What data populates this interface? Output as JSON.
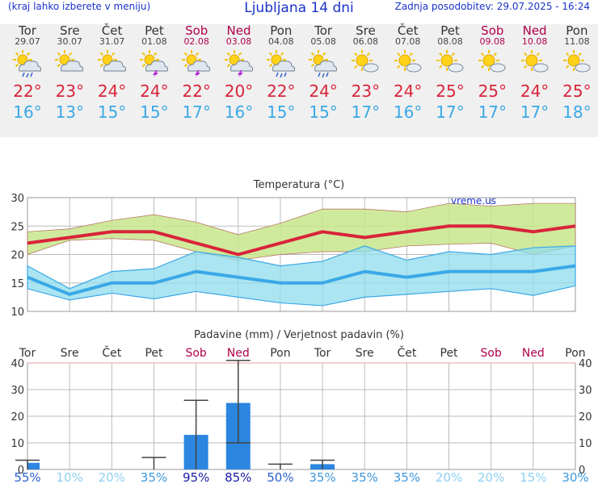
{
  "header": {
    "left_note": "(kraj lahko izberete v meniju)",
    "title": "Ljubljana 14 dni",
    "updated": "Zadnja posodobitev: 29.07.2025 - 16:24"
  },
  "days": [
    {
      "name": "Tor",
      "date": "29.07",
      "icon": "sun-cloud-rain-icon",
      "tmax": "22°",
      "tmin": "16°",
      "weekend": false
    },
    {
      "name": "Sre",
      "date": "30.07",
      "icon": "sun-cloud-icon",
      "tmax": "23°",
      "tmin": "13°",
      "weekend": false
    },
    {
      "name": "Čet",
      "date": "31.07",
      "icon": "sun-cloud-icon",
      "tmax": "24°",
      "tmin": "15°",
      "weekend": false
    },
    {
      "name": "Pet",
      "date": "01.08",
      "icon": "sun-cloud-storm-icon",
      "tmax": "24°",
      "tmin": "15°",
      "weekend": false
    },
    {
      "name": "Sob",
      "date": "02.08",
      "icon": "sun-cloud-storm-icon",
      "tmax": "22°",
      "tmin": "17°",
      "weekend": true
    },
    {
      "name": "Ned",
      "date": "03.08",
      "icon": "sun-cloud-storm-icon",
      "tmax": "20°",
      "tmin": "16°",
      "weekend": true
    },
    {
      "name": "Pon",
      "date": "04.08",
      "icon": "sun-cloud-rain-icon",
      "tmax": "22°",
      "tmin": "15°",
      "weekend": false
    },
    {
      "name": "Tor",
      "date": "05.08",
      "icon": "sun-cloud-rain-icon",
      "tmax": "24°",
      "tmin": "15°",
      "weekend": false
    },
    {
      "name": "Sre",
      "date": "06.08",
      "icon": "sun-small-cloud-icon",
      "tmax": "23°",
      "tmin": "17°",
      "weekend": false
    },
    {
      "name": "Čet",
      "date": "07.08",
      "icon": "sun-small-cloud-icon",
      "tmax": "24°",
      "tmin": "16°",
      "weekend": false
    },
    {
      "name": "Pet",
      "date": "08.08",
      "icon": "sun-small-cloud-icon",
      "tmax": "25°",
      "tmin": "17°",
      "weekend": false
    },
    {
      "name": "Sob",
      "date": "09.08",
      "icon": "sun-small-cloud-icon",
      "tmax": "25°",
      "tmin": "17°",
      "weekend": true
    },
    {
      "name": "Ned",
      "date": "10.08",
      "icon": "sun-small-cloud-icon",
      "tmax": "24°",
      "tmin": "17°",
      "weekend": true
    },
    {
      "name": "Pon",
      "date": "11.08",
      "icon": "sun-small-cloud-icon",
      "tmax": "25°",
      "tmin": "18°",
      "weekend": false
    }
  ],
  "colors": {
    "max": "#d8243a",
    "min": "#3aa8e6",
    "max_band": "#c8e68c",
    "min_band": "#8fdcec",
    "overlap": "#7fcf6f",
    "bar": "#2b86e0",
    "weekend": "#b0004a",
    "header": "#1a33c9"
  },
  "chart_data": [
    {
      "type": "line",
      "title": "Temperatura (°C)",
      "watermark": "vreme.us",
      "categories": [
        "Tor",
        "Sre",
        "Čet",
        "Pet",
        "Sob",
        "Ned",
        "Pon",
        "Tor",
        "Sre",
        "Čet",
        "Pet",
        "Sob",
        "Ned",
        "Pon"
      ],
      "ylim": [
        10,
        30
      ],
      "yticks": [
        10,
        15,
        20,
        25,
        30
      ],
      "grid": true,
      "series": [
        {
          "values": [
            22,
            23,
            24,
            24,
            22,
            20,
            22,
            24,
            23,
            24,
            25,
            25,
            24,
            25
          ]
        },
        {
          "values": [
            16,
            13,
            15,
            15,
            17,
            16,
            15,
            15,
            17,
            16,
            17,
            17,
            17,
            18
          ]
        }
      ],
      "max_band_upper": [
        24,
        24.5,
        26,
        27,
        25.7,
        23.5,
        25.5,
        28,
        28,
        27.5,
        29,
        28.5,
        29,
        29
      ],
      "max_band_lower": [
        20,
        22.5,
        22.8,
        22.5,
        20.5,
        19,
        20,
        20.5,
        20.5,
        21.5,
        21.8,
        22,
        20,
        21.5
      ],
      "min_band_upper": [
        18,
        14,
        17,
        17.5,
        20.5,
        19.5,
        18,
        18.8,
        21.5,
        19,
        20.5,
        20,
        21.2,
        21.5
      ],
      "min_band_lower": [
        14,
        12,
        13.2,
        12.2,
        13.5,
        12.5,
        11.5,
        11,
        12.5,
        13,
        13.5,
        14,
        12.8,
        14.5
      ]
    },
    {
      "type": "bar",
      "title": "Padavine (mm) / Verjetnost padavin (%)",
      "categories": [
        "Tor",
        "Sre",
        "Čet",
        "Pet",
        "Sob",
        "Ned",
        "Pon",
        "Tor",
        "Sre",
        "Čet",
        "Pet",
        "Sob",
        "Ned",
        "Pon"
      ],
      "ylim": [
        0,
        40
      ],
      "yticks": [
        0,
        10,
        20,
        30,
        40
      ],
      "values": [
        2.5,
        0,
        0,
        0,
        13,
        25,
        0,
        2,
        0,
        0,
        0,
        0,
        0,
        0
      ],
      "range_low": [
        0,
        null,
        null,
        0,
        0,
        10,
        0,
        0,
        null,
        null,
        null,
        null,
        null,
        null
      ],
      "range_high": [
        3.5,
        null,
        null,
        4.5,
        26,
        41,
        2,
        3.5,
        null,
        null,
        null,
        null,
        null,
        null
      ],
      "probabilities": [
        "55%",
        "10%",
        "20%",
        "35%",
        "95%",
        "85%",
        "50%",
        "35%",
        "35%",
        "35%",
        "20%",
        "20%",
        "15%",
        "30%"
      ]
    }
  ]
}
